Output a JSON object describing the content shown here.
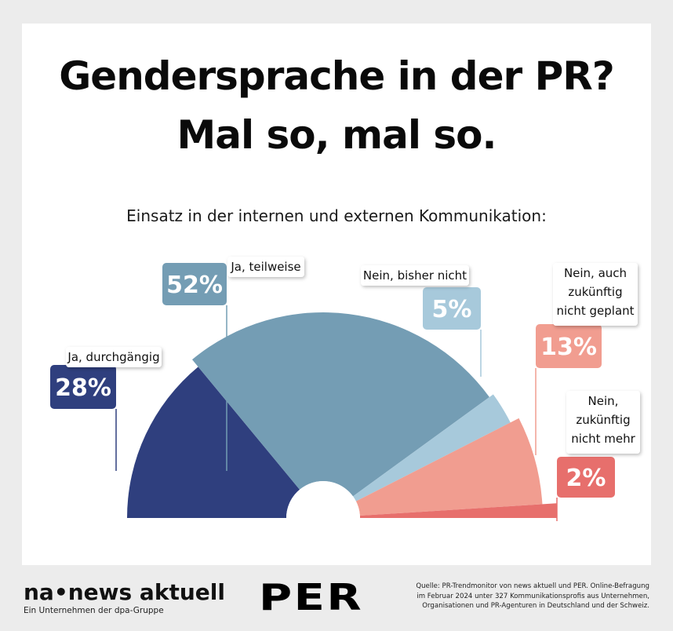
{
  "header": {
    "title_line1": "Gendersprache in der PR?",
    "title_line2": "Mal so, mal so.",
    "subtitle": "Einsatz in der internen und externen Kommunikation:"
  },
  "chart_data": {
    "type": "pie",
    "variant": "semicircle",
    "title": "Gendersprache in der PR? Mal so, mal so.",
    "subtitle": "Einsatz in der internen und externen Kommunikation:",
    "slices": [
      {
        "label": "Ja, durchgängig",
        "value": 28,
        "value_label": "28%",
        "color": "#2f3f7e"
      },
      {
        "label": "Ja, teilweise",
        "value": 52,
        "value_label": "52%",
        "color": "#749db4"
      },
      {
        "label": "Nein, bisher nicht",
        "value": 5,
        "value_label": "5%",
        "color": "#a7c9db"
      },
      {
        "label": "Nein, auch zukünftig nicht geplant",
        "value": 13,
        "value_label": "13%",
        "color": "#f19d90"
      },
      {
        "label": "Nein, zukünftig nicht mehr",
        "value": 2,
        "value_label": "2%",
        "color": "#e76f6c"
      }
    ]
  },
  "footer": {
    "brand": "na•news aktuell",
    "brand_sub": "Ein Unternehmen der dpa-Gruppe",
    "partner": "PER",
    "source_line1": "Quelle: PR-Trendmonitor von news aktuell und PER. Online-Befragung",
    "source_line2": "im Februar 2024 unter 327 Kommunikationsprofis aus Unternehmen,",
    "source_line3": "Organisationen und PR-Agenturen in Deutschland und der Schweiz."
  }
}
